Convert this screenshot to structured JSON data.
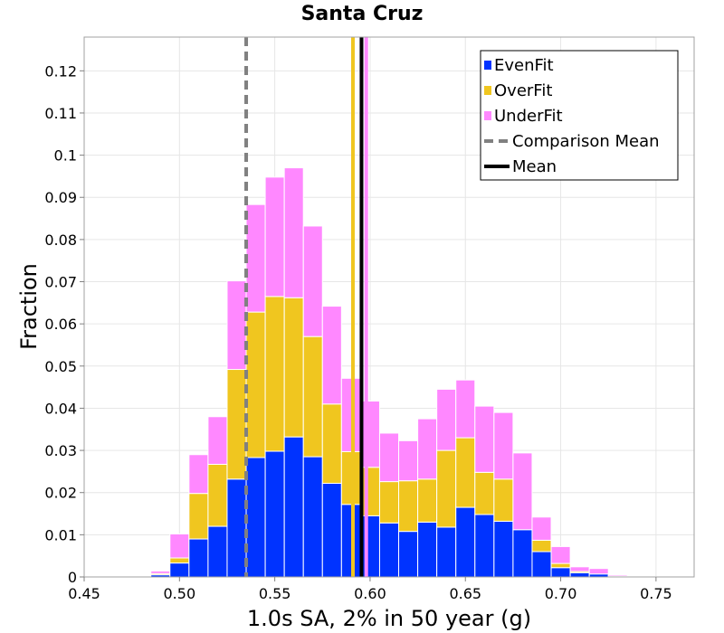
{
  "chart_data": {
    "type": "bar",
    "stacked": true,
    "title": "Santa Cruz",
    "xlabel": "1.0s SA, 2% in 50 year (g)",
    "ylabel": "Fraction",
    "xlim": [
      0.45,
      0.77
    ],
    "ylim": [
      0,
      0.128
    ],
    "xticks": [
      0.45,
      0.5,
      0.55,
      0.6,
      0.65,
      0.7,
      0.75
    ],
    "xtick_labels": [
      "0.45",
      "0.50",
      "0.55",
      "0.60",
      "0.65",
      "0.70",
      "0.75"
    ],
    "yticks": [
      0,
      0.01,
      0.02,
      0.03,
      0.04,
      0.05,
      0.06,
      0.07,
      0.08,
      0.09,
      0.1,
      0.11,
      0.12
    ],
    "ytick_labels": [
      "0",
      "0.01",
      "0.02",
      "0.03",
      "0.04",
      "0.05",
      "0.06",
      "0.07",
      "0.08",
      "0.09",
      "0.1",
      "0.11",
      "0.12"
    ],
    "grid": true,
    "bin_width": 0.01,
    "bin_centers": [
      0.48,
      0.49,
      0.5,
      0.51,
      0.52,
      0.53,
      0.54,
      0.55,
      0.56,
      0.57,
      0.58,
      0.59,
      0.6,
      0.61,
      0.62,
      0.63,
      0.64,
      0.65,
      0.66,
      0.67,
      0.68,
      0.69,
      0.7,
      0.71,
      0.72,
      0.73,
      0.74,
      0.75
    ],
    "series": [
      {
        "name": "EvenFit",
        "color": "#0033ff",
        "values": [
          0.0002,
          0.0005,
          0.0033,
          0.009,
          0.012,
          0.0232,
          0.0283,
          0.0298,
          0.0332,
          0.0285,
          0.0222,
          0.0172,
          0.0145,
          0.0128,
          0.0108,
          0.013,
          0.0118,
          0.0165,
          0.0148,
          0.0132,
          0.0112,
          0.006,
          0.0022,
          0.001,
          0.0007,
          0.0002,
          0.0001,
          0.0
        ]
      },
      {
        "name": "OverFit",
        "color": "#f0c61f",
        "values": [
          0.0001,
          0.0003,
          0.0012,
          0.0108,
          0.0147,
          0.026,
          0.0345,
          0.0367,
          0.033,
          0.0285,
          0.0188,
          0.0125,
          0.0115,
          0.0098,
          0.012,
          0.0102,
          0.0182,
          0.0165,
          0.01,
          0.01,
          0.0,
          0.0027,
          0.001,
          0.0003,
          0.0,
          0.0,
          0.0,
          0.0
        ]
      },
      {
        "name": "UnderFit",
        "color": "#ff88ff",
        "values": [
          0.0002,
          0.0006,
          0.0057,
          0.0092,
          0.0113,
          0.021,
          0.0255,
          0.0283,
          0.0308,
          0.0262,
          0.0232,
          0.0174,
          0.0157,
          0.0115,
          0.0095,
          0.0143,
          0.0145,
          0.0137,
          0.0157,
          0.0158,
          0.0182,
          0.0055,
          0.004,
          0.0011,
          0.0013,
          0.0003,
          0.0002,
          0.0001
        ]
      }
    ],
    "vertical_lines": [
      {
        "name": "Comparison Mean",
        "x": 0.535,
        "color": "#808080",
        "style": "dashed"
      },
      {
        "name": "OverFit Mean",
        "x": 0.591,
        "color": "#f0c61f",
        "style": "solid"
      },
      {
        "name": "UnderFit Mean",
        "x": 0.598,
        "color": "#ff88ff",
        "style": "solid"
      },
      {
        "name": "EvenFit Mean",
        "x": 0.5955,
        "color": "#0033ff",
        "style": "solid"
      },
      {
        "name": "Mean",
        "x": 0.5955,
        "color": "#000000",
        "style": "solid"
      }
    ],
    "legend": {
      "position": "top-right",
      "entries": [
        {
          "label": "EvenFit",
          "color": "#0033ff",
          "kind": "square"
        },
        {
          "label": "OverFit",
          "color": "#f0c61f",
          "kind": "square"
        },
        {
          "label": "UnderFit",
          "color": "#ff88ff",
          "kind": "square"
        },
        {
          "label": "Comparison Mean",
          "color": "#808080",
          "kind": "dashed-line"
        },
        {
          "label": "Mean",
          "color": "#000000",
          "kind": "solid-line"
        }
      ]
    }
  }
}
